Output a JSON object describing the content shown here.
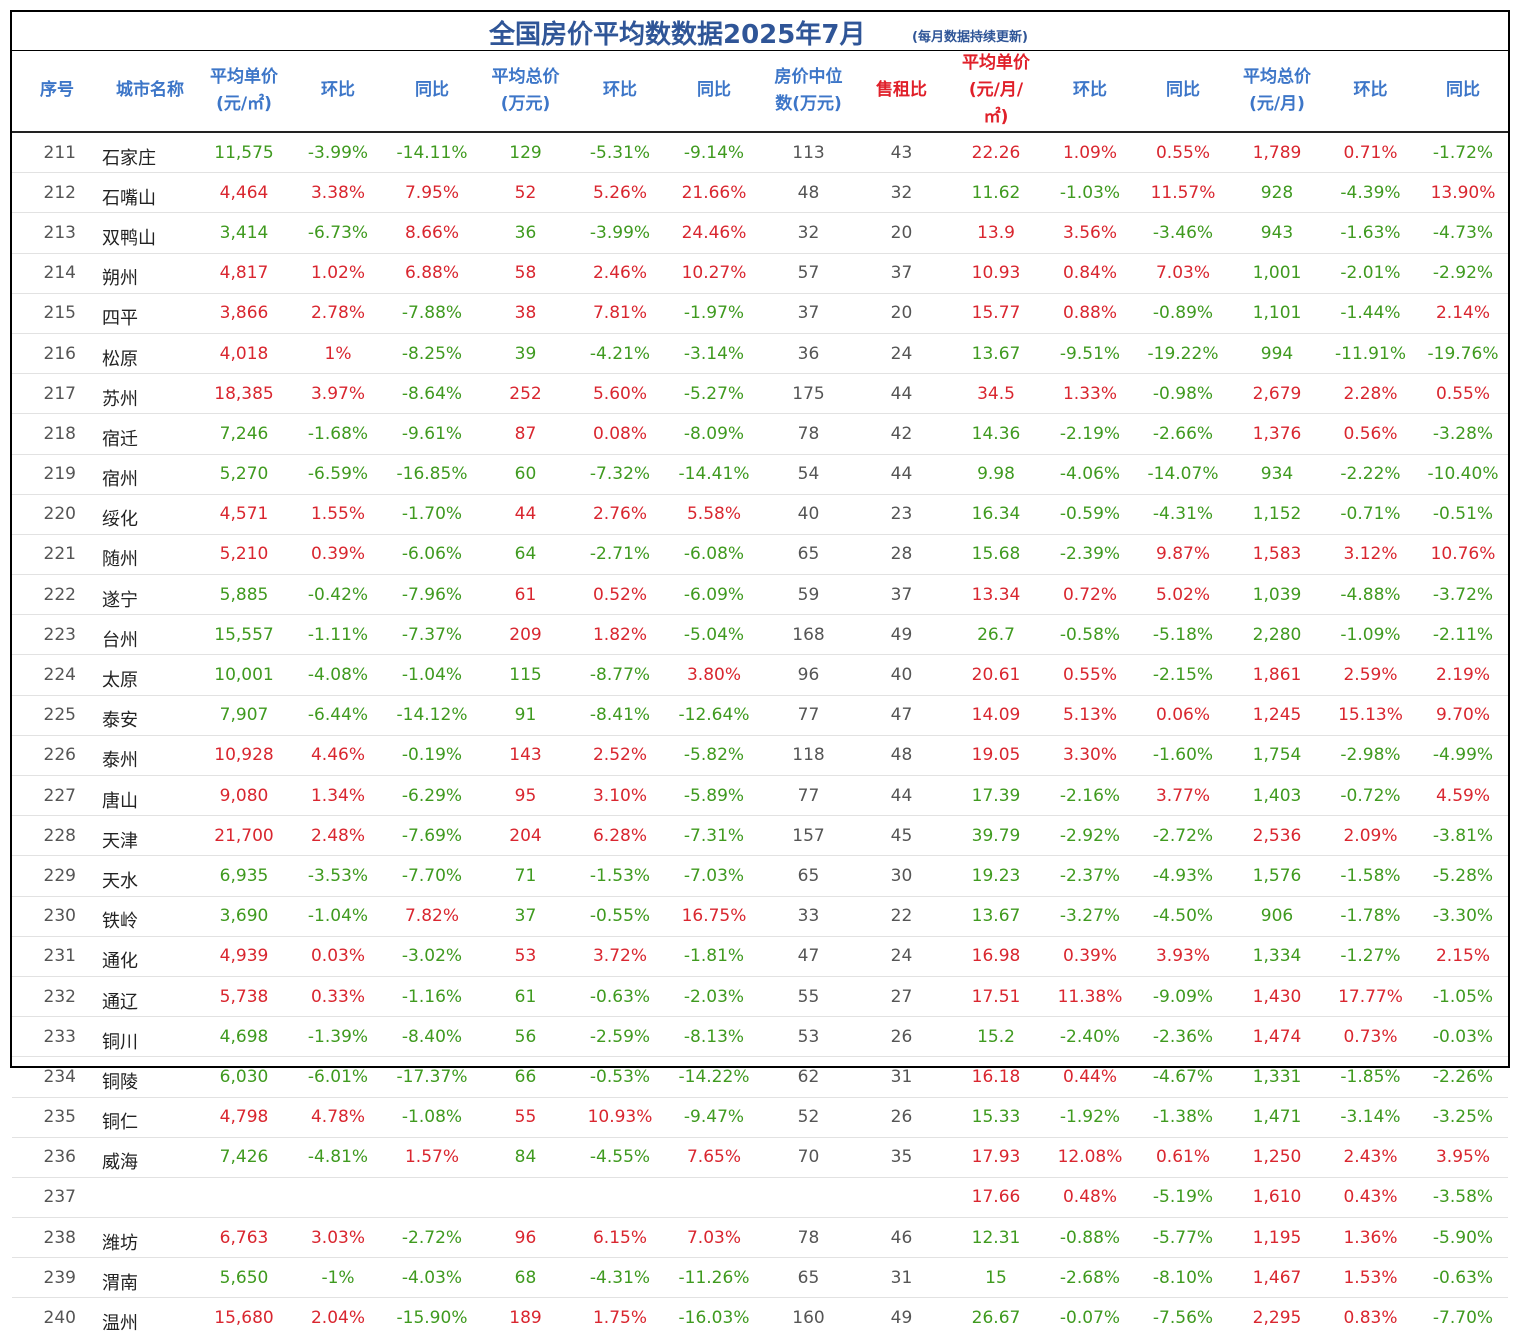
{
  "title": "全国房价平均数数据2025年7月",
  "subtitle": "(每月数据持续更新)",
  "colors": {
    "header_blue": "#3d76c8",
    "header_red": "#e0202a",
    "rise": "#d9262f",
    "fall": "#3f9a1f",
    "title": "#2f5597"
  },
  "columns": [
    {
      "label": "序号",
      "key": "idx"
    },
    {
      "label": "城市名称",
      "key": "city"
    },
    {
      "label": "平均单价\n(元/㎡)",
      "key": "price"
    },
    {
      "label": "环比",
      "key": "mom1"
    },
    {
      "label": "同比",
      "key": "yoy1"
    },
    {
      "label": "平均总价\n(万元)",
      "key": "total"
    },
    {
      "label": "环比",
      "key": "mom2"
    },
    {
      "label": "同比",
      "key": "yoy2"
    },
    {
      "label": "房价中位\n数(万元)",
      "key": "median"
    },
    {
      "label": "售租比",
      "key": "ratio"
    },
    {
      "label": "平均单价\n(元/月/\n㎡)",
      "key": "rent_unit"
    },
    {
      "label": "环比",
      "key": "mom3"
    },
    {
      "label": "同比",
      "key": "yoy3"
    },
    {
      "label": "平均总价\n(元/月)",
      "key": "rent_total"
    },
    {
      "label": "环比",
      "key": "mom4"
    },
    {
      "label": "同比",
      "key": "yoy4"
    }
  ],
  "rows": [
    [
      "211",
      "石家庄",
      "11,575",
      "-3.99%",
      "-14.11%",
      "129",
      "-5.31%",
      "-9.14%",
      "113",
      "43",
      "22.26",
      "1.09%",
      "0.55%",
      "1,789",
      "0.71%",
      "-1.72%"
    ],
    [
      "212",
      "石嘴山",
      "4,464",
      "3.38%",
      "7.95%",
      "52",
      "5.26%",
      "21.66%",
      "48",
      "32",
      "11.62",
      "-1.03%",
      "11.57%",
      "928",
      "-4.39%",
      "13.90%"
    ],
    [
      "213",
      "双鸭山",
      "3,414",
      "-6.73%",
      "8.66%",
      "36",
      "-3.99%",
      "24.46%",
      "32",
      "20",
      "13.9",
      "3.56%",
      "-3.46%",
      "943",
      "-1.63%",
      "-4.73%"
    ],
    [
      "214",
      "朔州",
      "4,817",
      "1.02%",
      "6.88%",
      "58",
      "2.46%",
      "10.27%",
      "57",
      "37",
      "10.93",
      "0.84%",
      "7.03%",
      "1,001",
      "-2.01%",
      "-2.92%"
    ],
    [
      "215",
      "四平",
      "3,866",
      "2.78%",
      "-7.88%",
      "38",
      "7.81%",
      "-1.97%",
      "37",
      "20",
      "15.77",
      "0.88%",
      "-0.89%",
      "1,101",
      "-1.44%",
      "2.14%"
    ],
    [
      "216",
      "松原",
      "4,018",
      "1%",
      "-8.25%",
      "39",
      "-4.21%",
      "-3.14%",
      "36",
      "24",
      "13.67",
      "-9.51%",
      "-19.22%",
      "994",
      "-11.91%",
      "-19.76%"
    ],
    [
      "217",
      "苏州",
      "18,385",
      "3.97%",
      "-8.64%",
      "252",
      "5.60%",
      "-5.27%",
      "175",
      "44",
      "34.5",
      "1.33%",
      "-0.98%",
      "2,679",
      "2.28%",
      "0.55%"
    ],
    [
      "218",
      "宿迁",
      "7,246",
      "-1.68%",
      "-9.61%",
      "87",
      "0.08%",
      "-8.09%",
      "78",
      "42",
      "14.36",
      "-2.19%",
      "-2.66%",
      "1,376",
      "0.56%",
      "-3.28%"
    ],
    [
      "219",
      "宿州",
      "5,270",
      "-6.59%",
      "-16.85%",
      "60",
      "-7.32%",
      "-14.41%",
      "54",
      "44",
      "9.98",
      "-4.06%",
      "-14.07%",
      "934",
      "-2.22%",
      "-10.40%"
    ],
    [
      "220",
      "绥化",
      "4,571",
      "1.55%",
      "-1.70%",
      "44",
      "2.76%",
      "5.58%",
      "40",
      "23",
      "16.34",
      "-0.59%",
      "-4.31%",
      "1,152",
      "-0.71%",
      "-0.51%"
    ],
    [
      "221",
      "随州",
      "5,210",
      "0.39%",
      "-6.06%",
      "64",
      "-2.71%",
      "-6.08%",
      "65",
      "28",
      "15.68",
      "-2.39%",
      "9.87%",
      "1,583",
      "3.12%",
      "10.76%"
    ],
    [
      "222",
      "遂宁",
      "5,885",
      "-0.42%",
      "-7.96%",
      "61",
      "0.52%",
      "-6.09%",
      "59",
      "37",
      "13.34",
      "0.72%",
      "5.02%",
      "1,039",
      "-4.88%",
      "-3.72%"
    ],
    [
      "223",
      "台州",
      "15,557",
      "-1.11%",
      "-7.37%",
      "209",
      "1.82%",
      "-5.04%",
      "168",
      "49",
      "26.7",
      "-0.58%",
      "-5.18%",
      "2,280",
      "-1.09%",
      "-2.11%"
    ],
    [
      "224",
      "太原",
      "10,001",
      "-4.08%",
      "-1.04%",
      "115",
      "-8.77%",
      "3.80%",
      "96",
      "40",
      "20.61",
      "0.55%",
      "-2.15%",
      "1,861",
      "2.59%",
      "2.19%"
    ],
    [
      "225",
      "泰安",
      "7,907",
      "-6.44%",
      "-14.12%",
      "91",
      "-8.41%",
      "-12.64%",
      "77",
      "47",
      "14.09",
      "5.13%",
      "0.06%",
      "1,245",
      "15.13%",
      "9.70%"
    ],
    [
      "226",
      "泰州",
      "10,928",
      "4.46%",
      "-0.19%",
      "143",
      "2.52%",
      "-5.82%",
      "118",
      "48",
      "19.05",
      "3.30%",
      "-1.60%",
      "1,754",
      "-2.98%",
      "-4.99%"
    ],
    [
      "227",
      "唐山",
      "9,080",
      "1.34%",
      "-6.29%",
      "95",
      "3.10%",
      "-5.89%",
      "77",
      "44",
      "17.39",
      "-2.16%",
      "3.77%",
      "1,403",
      "-0.72%",
      "4.59%"
    ],
    [
      "228",
      "天津",
      "21,700",
      "2.48%",
      "-7.69%",
      "204",
      "6.28%",
      "-7.31%",
      "157",
      "45",
      "39.79",
      "-2.92%",
      "-2.72%",
      "2,536",
      "2.09%",
      "-3.81%"
    ],
    [
      "229",
      "天水",
      "6,935",
      "-3.53%",
      "-7.70%",
      "71",
      "-1.53%",
      "-7.03%",
      "65",
      "30",
      "19.23",
      "-2.37%",
      "-4.93%",
      "1,576",
      "-1.58%",
      "-5.28%"
    ],
    [
      "230",
      "铁岭",
      "3,690",
      "-1.04%",
      "7.82%",
      "37",
      "-0.55%",
      "16.75%",
      "33",
      "22",
      "13.67",
      "-3.27%",
      "-4.50%",
      "906",
      "-1.78%",
      "-3.30%"
    ],
    [
      "231",
      "通化",
      "4,939",
      "0.03%",
      "-3.02%",
      "53",
      "3.72%",
      "-1.81%",
      "47",
      "24",
      "16.98",
      "0.39%",
      "3.93%",
      "1,334",
      "-1.27%",
      "2.15%"
    ],
    [
      "232",
      "通辽",
      "5,738",
      "0.33%",
      "-1.16%",
      "61",
      "-0.63%",
      "-2.03%",
      "55",
      "27",
      "17.51",
      "11.38%",
      "-9.09%",
      "1,430",
      "17.77%",
      "-1.05%"
    ],
    [
      "233",
      "铜川",
      "4,698",
      "-1.39%",
      "-8.40%",
      "56",
      "-2.59%",
      "-8.13%",
      "53",
      "26",
      "15.2",
      "-2.40%",
      "-2.36%",
      "1,474",
      "0.73%",
      "-0.03%"
    ],
    [
      "234",
      "铜陵",
      "6,030",
      "-6.01%",
      "-17.37%",
      "66",
      "-0.53%",
      "-14.22%",
      "62",
      "31",
      "16.18",
      "0.44%",
      "-4.67%",
      "1,331",
      "-1.85%",
      "-2.26%"
    ],
    [
      "235",
      "铜仁",
      "4,798",
      "4.78%",
      "-1.08%",
      "55",
      "10.93%",
      "-9.47%",
      "52",
      "26",
      "15.33",
      "-1.92%",
      "-1.38%",
      "1,471",
      "-3.14%",
      "-3.25%"
    ],
    [
      "236",
      "威海",
      "7,426",
      "-4.81%",
      "1.57%",
      "84",
      "-4.55%",
      "7.65%",
      "70",
      "35",
      "17.93",
      "12.08%",
      "0.61%",
      "1,250",
      "2.43%",
      "3.95%"
    ],
    [
      "237",
      "",
      "",
      "",
      "",
      "",
      "",
      "",
      "",
      "",
      "17.66",
      "0.48%",
      "-5.19%",
      "1,610",
      "0.43%",
      "-3.58%"
    ],
    [
      "238",
      "潍坊",
      "6,763",
      "3.03%",
      "-2.72%",
      "96",
      "6.15%",
      "7.03%",
      "78",
      "46",
      "12.31",
      "-0.88%",
      "-5.77%",
      "1,195",
      "1.36%",
      "-5.90%"
    ],
    [
      "239",
      "渭南",
      "5,650",
      "-1%",
      "-4.03%",
      "68",
      "-4.31%",
      "-11.26%",
      "65",
      "31",
      "15",
      "-2.68%",
      "-8.10%",
      "1,467",
      "1.53%",
      "-0.63%"
    ],
    [
      "240",
      "温州",
      "15,680",
      "2.04%",
      "-15.90%",
      "189",
      "1.75%",
      "-16.03%",
      "160",
      "49",
      "26.67",
      "-0.07%",
      "-7.56%",
      "2,295",
      "0.83%",
      "-7.70%"
    ]
  ]
}
